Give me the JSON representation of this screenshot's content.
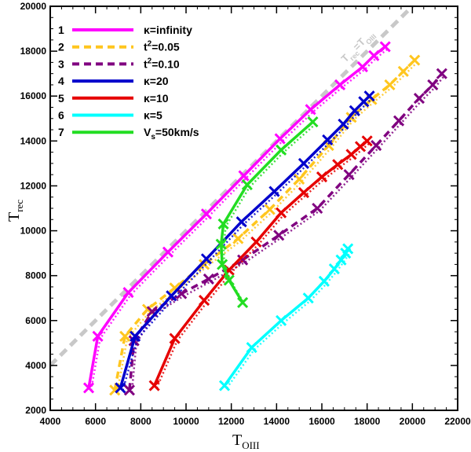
{
  "chart_data": {
    "type": "line",
    "xlabel_main": "T",
    "xlabel_sub": "OIII",
    "ylabel_main": "T",
    "ylabel_sub": "rec",
    "xlim": [
      4000,
      22000
    ],
    "ylim": [
      2000,
      20000
    ],
    "x_ticks": [
      4000,
      6000,
      8000,
      10000,
      12000,
      14000,
      16000,
      18000,
      20000,
      22000
    ],
    "y_ticks": [
      2000,
      4000,
      6000,
      8000,
      10000,
      12000,
      14000,
      16000,
      18000,
      20000
    ],
    "x_tick_labels": [
      "4000",
      "6000",
      "8000",
      "10000",
      "12000",
      "14000",
      "16000",
      "18000",
      "20000",
      "22000"
    ],
    "y_tick_labels": [
      "2000",
      "4000",
      "6000",
      "8000",
      "10000",
      "12000",
      "14000",
      "16000",
      "18000",
      "20000"
    ],
    "reference_line": {
      "label_main": "T",
      "label_sub1": "rec",
      "label_eq": "=T",
      "label_sub2": "OIII",
      "color": "#c8c8c8",
      "x": [
        4000,
        20000
      ],
      "y": [
        4000,
        20000
      ]
    },
    "legend_position": "top-left",
    "series": [
      {
        "num": "1",
        "name": "κ=infinity",
        "sup": "",
        "rest": "",
        "color": "#ff00ff",
        "style": "solid",
        "x": [
          5700,
          6100,
          7450,
          9200,
          10900,
          12550,
          14150,
          15500,
          16800,
          17800,
          18300,
          18800
        ],
        "y": [
          3000,
          5300,
          7250,
          9050,
          10750,
          12450,
          14100,
          15400,
          16500,
          17300,
          17800,
          18200
        ]
      },
      {
        "num": "2",
        "name": "t",
        "sup": "2",
        "rest": "=0.05",
        "color": "#ffc61e",
        "style": "dashed",
        "x": [
          6850,
          7300,
          8300,
          9500,
          10800,
          12300,
          13700,
          15000,
          16300,
          17300,
          18200,
          19000,
          19600,
          20100
        ],
        "y": [
          2900,
          5300,
          6500,
          7450,
          8500,
          9650,
          10950,
          12300,
          13800,
          15050,
          15850,
          16500,
          17100,
          17600
        ]
      },
      {
        "num": "3",
        "name": "t",
        "sup": "2",
        "rest": "=0.10",
        "color": "#800080",
        "style": "dashed",
        "x": [
          7500,
          7700,
          8500,
          9800,
          11000,
          12500,
          14100,
          15800,
          17200,
          18400,
          19400,
          20300,
          20900,
          21300
        ],
        "y": [
          2900,
          5100,
          6400,
          7200,
          7850,
          8700,
          9800,
          11000,
          12500,
          13800,
          14900,
          15900,
          16500,
          17000
        ]
      },
      {
        "num": "4",
        "name": "κ=20",
        "sup": "",
        "rest": "",
        "color": "#0000cc",
        "style": "solid",
        "x": [
          7100,
          7750,
          9350,
          10900,
          12450,
          13900,
          15200,
          16250,
          16950,
          17450,
          17850,
          18100
        ],
        "y": [
          3000,
          5300,
          7100,
          8750,
          10400,
          11750,
          13000,
          14050,
          14750,
          15350,
          15750,
          16000
        ]
      },
      {
        "num": "5",
        "name": "κ=10",
        "sup": "",
        "rest": "",
        "color": "#e60000",
        "style": "solid",
        "x": [
          8600,
          9500,
          10800,
          11900,
          13100,
          14200,
          15200,
          16000,
          16700,
          17300,
          17700,
          18000
        ],
        "y": [
          3100,
          5200,
          6900,
          8250,
          9500,
          10800,
          11700,
          12400,
          12950,
          13400,
          13750,
          14000
        ]
      },
      {
        "num": "6",
        "name": "κ=5",
        "sup": "",
        "rest": "",
        "color": "#00ffff",
        "style": "solid",
        "x": [
          11700,
          12900,
          14200,
          15400,
          16100,
          16550,
          16850,
          17050,
          17150
        ],
        "y": [
          3100,
          4800,
          6000,
          7000,
          7750,
          8300,
          8700,
          9000,
          9200
        ]
      },
      {
        "num": "7",
        "name": "V",
        "sup": "",
        "rest": "=50km/s",
        "sub": "s",
        "color": "#22dd22",
        "style": "solid",
        "x": [
          12500,
          11900,
          11600,
          11550,
          11650,
          12700,
          14200,
          15600
        ],
        "y": [
          6800,
          7800,
          8500,
          9400,
          10300,
          12050,
          13600,
          14850
        ]
      }
    ]
  }
}
